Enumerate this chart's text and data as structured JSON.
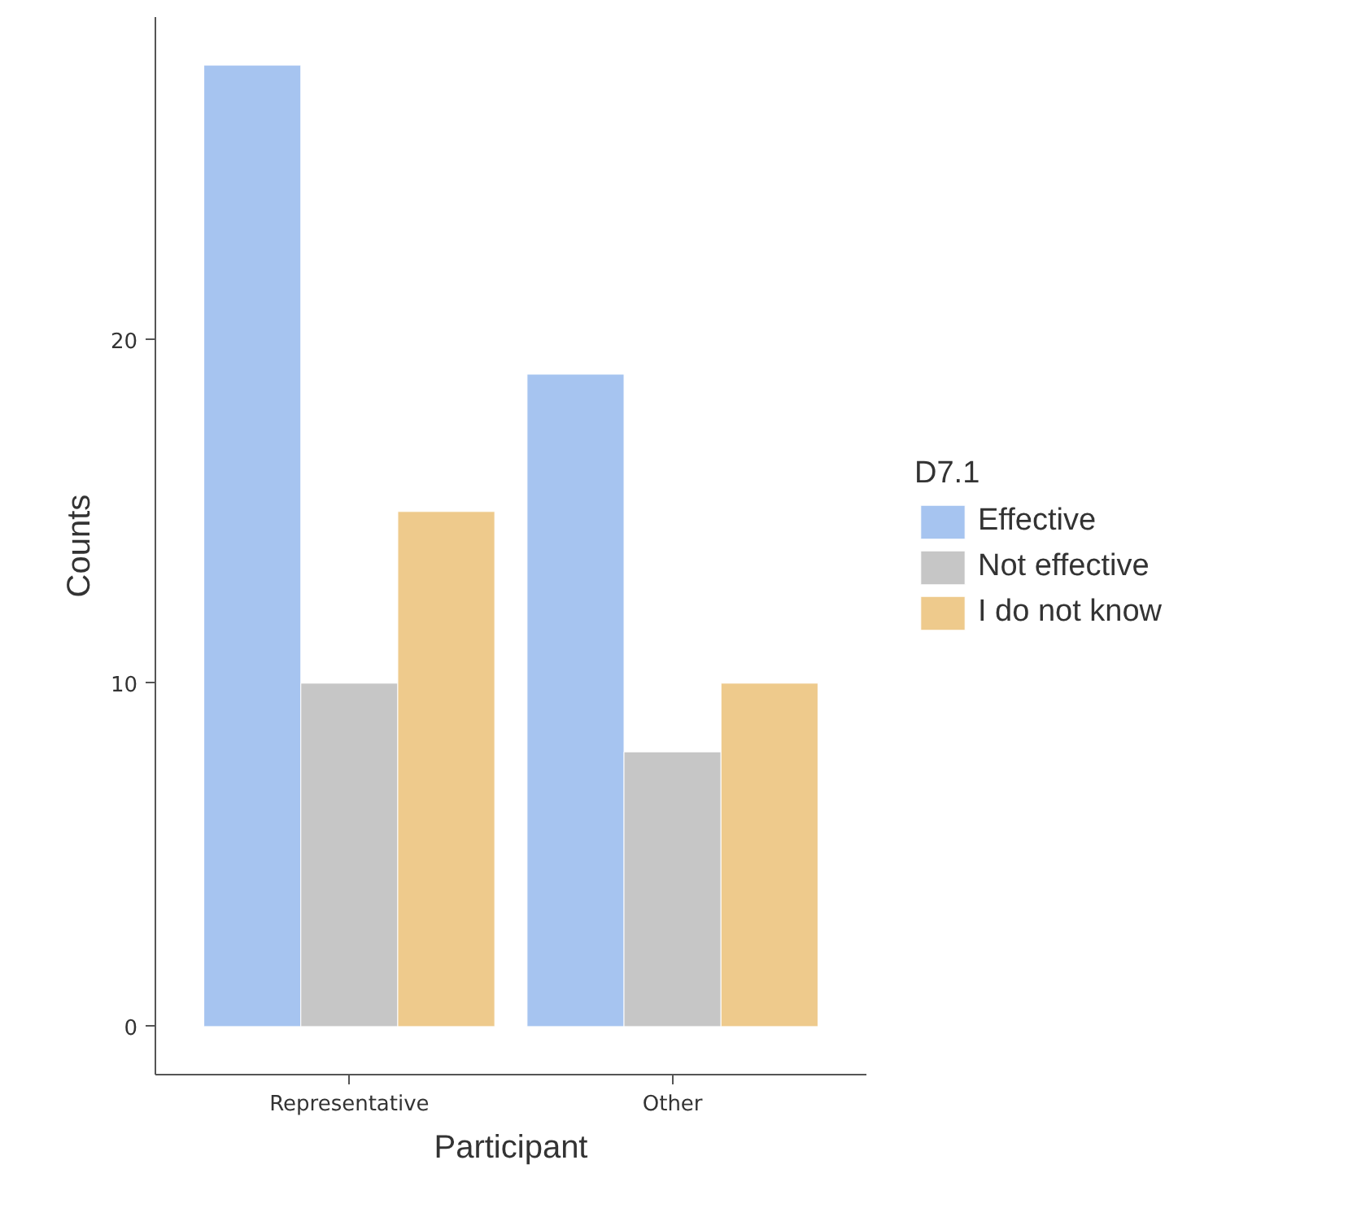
{
  "chart_data": {
    "type": "bar",
    "xlabel": "Participant",
    "ylabel": "Counts",
    "legend_title": "D7.1",
    "categories": [
      "Representative",
      "Other"
    ],
    "series": [
      {
        "name": "Effective",
        "color": "#a6c4f0",
        "values": [
          28,
          19
        ]
      },
      {
        "name": "Not effective",
        "color": "#c6c6c6",
        "values": [
          10,
          8
        ]
      },
      {
        "name": "I do not know",
        "color": "#eeca8c",
        "values": [
          15,
          10
        ]
      }
    ],
    "ylim": [
      -1.4,
      29.4
    ],
    "yticks": [
      0,
      10,
      20
    ],
    "grid": false,
    "legend": "right"
  }
}
